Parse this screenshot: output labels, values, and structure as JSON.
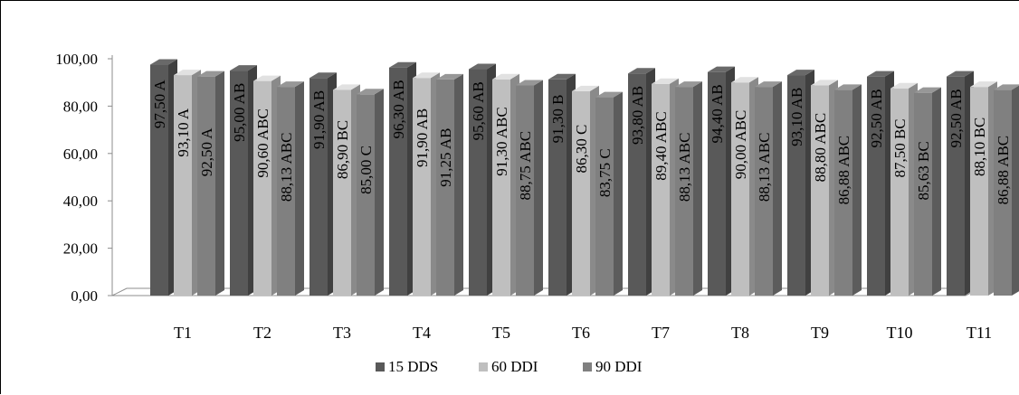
{
  "chart_data": {
    "type": "bar",
    "categories": [
      "T1",
      "T2",
      "T3",
      "T4",
      "T5",
      "T6",
      "T7",
      "T8",
      "T9",
      "T10",
      "T11"
    ],
    "series": [
      {
        "name": "15 DDS",
        "color": "#595959",
        "values": [
          97.5,
          95.0,
          91.9,
          96.3,
          95.6,
          91.3,
          93.8,
          94.4,
          93.1,
          92.5,
          92.5
        ],
        "labels": [
          "97,50  A",
          "95,00  AB",
          "91,90  AB",
          "96,30  AB",
          "95,60  AB",
          "91,30  B",
          "93,80  AB",
          "94,40  AB",
          "93,10  AB",
          "92,50  AB",
          "92,50  AB"
        ]
      },
      {
        "name": "60 DDI",
        "color": "#bfbfbf",
        "values": [
          93.1,
          90.6,
          86.9,
          91.9,
          91.3,
          86.3,
          89.4,
          90.0,
          88.8,
          87.5,
          88.1
        ],
        "labels": [
          "93,10  A",
          "90,60  ABC",
          "86,90  BC",
          "91,90  AB",
          "91,30  ABC",
          "86,30  C",
          "89,40  ABC",
          "90,00  ABC",
          "88,80  ABC",
          "87,50  BC",
          "88,10  BC"
        ]
      },
      {
        "name": "90 DDI",
        "color": "#808080",
        "values": [
          92.5,
          88.13,
          85.0,
          91.25,
          88.75,
          83.75,
          88.13,
          88.13,
          86.88,
          85.63,
          86.88
        ],
        "labels": [
          "92,50  A",
          "88,13  ABC",
          "85,00  C",
          "91,25  AB",
          "88,75  ABC",
          "83,75  C",
          "88,13  ABC",
          "88,13  ABC",
          "86,88  ABC",
          "85,63  BC",
          "86,88  ABC"
        ]
      }
    ],
    "y_ticks": [
      "0,00",
      "20,00",
      "40,00",
      "60,00",
      "80,00",
      "100,00"
    ],
    "ylim": [
      0,
      100
    ],
    "title": "",
    "xlabel": "",
    "ylabel": "",
    "grid": false,
    "legend": "bottom",
    "style": "3d-column"
  }
}
